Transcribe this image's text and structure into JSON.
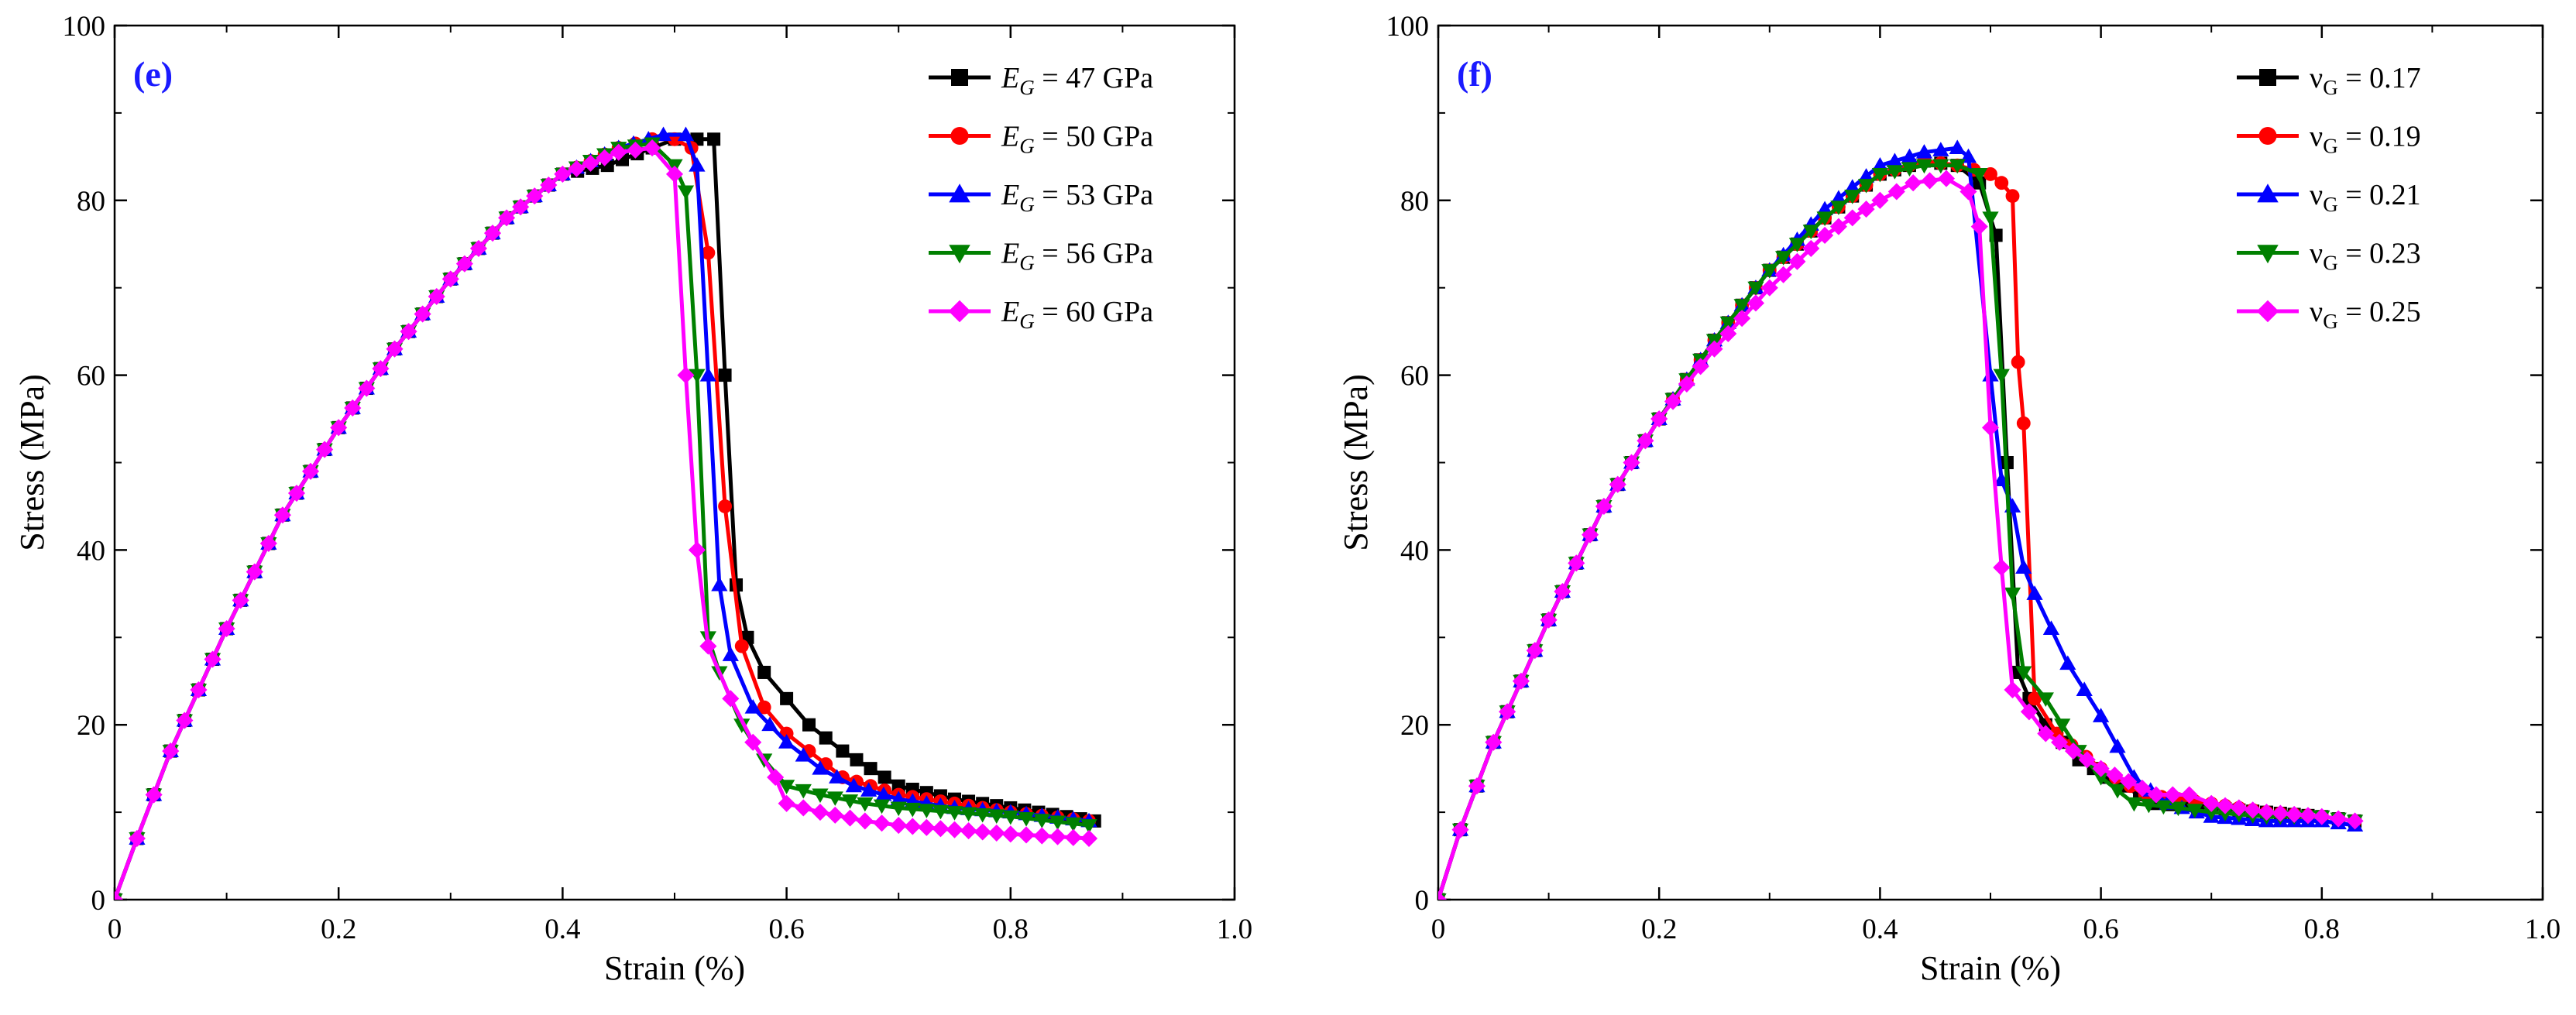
{
  "chart_data": [
    {
      "type": "line",
      "panel_label": "(e)",
      "xlabel": "Strain (%)",
      "ylabel": "Stress (MPa)",
      "xlim": [
        0,
        1.0
      ],
      "ylim": [
        0,
        100
      ],
      "xticks": [
        0,
        0.2,
        0.4,
        0.6,
        0.8,
        1.0
      ],
      "xtick_labels": [
        "0",
        "0.2",
        "0.4",
        "0.6",
        "0.8",
        "1.0"
      ],
      "yticks": [
        0,
        20,
        40,
        60,
        80,
        100
      ],
      "ytick_labels": [
        "0",
        "20",
        "40",
        "60",
        "80",
        "100"
      ],
      "legend_position": "top-right",
      "series": [
        {
          "name": "E_G = 47 GPa",
          "symbol": "E",
          "sub": "G",
          "rest": " = 47 GPa",
          "color": "#000000",
          "marker": "square",
          "x": [
            0,
            0.02,
            0.05,
            0.1,
            0.15,
            0.2,
            0.25,
            0.3,
            0.35,
            0.4,
            0.44,
            0.48,
            0.5,
            0.52,
            0.535,
            0.545,
            0.555,
            0.565,
            0.58,
            0.6,
            0.62,
            0.65,
            0.7,
            0.75,
            0.8,
            0.85,
            0.875
          ],
          "y": [
            0,
            7,
            17,
            31,
            44,
            54,
            63,
            71,
            78,
            83,
            84,
            86,
            87,
            87,
            87,
            60,
            36,
            30,
            26,
            23,
            20,
            17,
            13,
            11.5,
            10.5,
            9.5,
            9
          ]
        },
        {
          "name": "E_G = 50 GPa",
          "symbol": "E",
          "sub": "G",
          "rest": " = 50 GPa",
          "color": "#ff0000",
          "marker": "circle",
          "x": [
            0,
            0.02,
            0.05,
            0.1,
            0.15,
            0.2,
            0.25,
            0.3,
            0.35,
            0.4,
            0.45,
            0.48,
            0.5,
            0.515,
            0.53,
            0.545,
            0.56,
            0.58,
            0.6,
            0.62,
            0.65,
            0.7,
            0.75,
            0.8,
            0.87
          ],
          "y": [
            0,
            7,
            17,
            31,
            44,
            54,
            63,
            71,
            78,
            83,
            86,
            87,
            87,
            86,
            74,
            45,
            29,
            22,
            19,
            17,
            14,
            12,
            11,
            10,
            9
          ]
        },
        {
          "name": "E_G = 53 GPa",
          "symbol": "E",
          "sub": "G",
          "rest": " = 53 GPa",
          "color": "#0000ff",
          "marker": "triangle-up",
          "x": [
            0,
            0.02,
            0.05,
            0.1,
            0.15,
            0.2,
            0.25,
            0.3,
            0.35,
            0.4,
            0.45,
            0.49,
            0.51,
            0.52,
            0.53,
            0.54,
            0.55,
            0.57,
            0.6,
            0.63,
            0.66,
            0.7,
            0.75,
            0.8,
            0.87
          ],
          "y": [
            0,
            7,
            17,
            31,
            44,
            54,
            63,
            71,
            78,
            83,
            86,
            87.5,
            87.5,
            84,
            60,
            36,
            28,
            22,
            18,
            15,
            13,
            11.5,
            10.5,
            10,
            9
          ]
        },
        {
          "name": "E_G = 56 GPa",
          "symbol": "E",
          "sub": "G",
          "rest": " = 56 GPa",
          "color": "#008000",
          "marker": "triangle-down",
          "x": [
            0,
            0.02,
            0.05,
            0.1,
            0.15,
            0.2,
            0.25,
            0.3,
            0.35,
            0.4,
            0.45,
            0.48,
            0.5,
            0.51,
            0.52,
            0.53,
            0.54,
            0.56,
            0.58,
            0.6,
            0.63,
            0.67,
            0.7,
            0.75,
            0.8,
            0.87
          ],
          "y": [
            0,
            7,
            17,
            31,
            44,
            54,
            63,
            71,
            78,
            83,
            86,
            86.5,
            84,
            81,
            60,
            30,
            26,
            20,
            16,
            13,
            12,
            11,
            10.5,
            10,
            9.5,
            8.5
          ]
        },
        {
          "name": "E_G = 60 GPa",
          "symbol": "E",
          "sub": "G",
          "rest": " = 60 GPa",
          "color": "#ff00ff",
          "marker": "diamond",
          "x": [
            0,
            0.02,
            0.05,
            0.1,
            0.15,
            0.2,
            0.25,
            0.3,
            0.35,
            0.4,
            0.45,
            0.48,
            0.5,
            0.51,
            0.52,
            0.53,
            0.55,
            0.57,
            0.59,
            0.6,
            0.63,
            0.67,
            0.7,
            0.75,
            0.8,
            0.87
          ],
          "y": [
            0,
            7,
            17,
            31,
            44,
            54,
            63,
            71,
            78,
            83,
            85.5,
            86,
            83,
            60,
            40,
            29,
            23,
            18,
            14,
            11,
            10,
            9,
            8.5,
            8,
            7.5,
            7
          ]
        }
      ]
    },
    {
      "type": "line",
      "panel_label": "(f)",
      "xlabel": "Strain (%)",
      "ylabel": "Stress (MPa)",
      "xlim": [
        0,
        1.0
      ],
      "ylim": [
        0,
        100
      ],
      "xticks": [
        0,
        0.2,
        0.4,
        0.6,
        0.8,
        1.0
      ],
      "xtick_labels": [
        "0",
        "0.2",
        "0.4",
        "0.6",
        "0.8",
        "1.0"
      ],
      "yticks": [
        0,
        20,
        40,
        60,
        80,
        100
      ],
      "ytick_labels": [
        "0",
        "20",
        "40",
        "60",
        "80",
        "100"
      ],
      "legend_position": "top-right",
      "series": [
        {
          "name": "νG = 0.17",
          "symbol": "ν",
          "sub": "G",
          "rest": " = 0.17",
          "color": "#000000",
          "marker": "square",
          "x": [
            0,
            0.02,
            0.05,
            0.1,
            0.15,
            0.2,
            0.25,
            0.3,
            0.35,
            0.4,
            0.44,
            0.47,
            0.49,
            0.505,
            0.515,
            0.525,
            0.535,
            0.55,
            0.58,
            0.62,
            0.65,
            0.7,
            0.75,
            0.8,
            0.83
          ],
          "y": [
            0,
            8,
            18,
            32,
            45,
            55,
            64,
            72,
            78,
            83,
            84.5,
            84,
            82,
            76,
            50,
            26,
            23,
            20,
            16,
            13,
            11,
            10.5,
            10,
            9.5,
            9
          ]
        },
        {
          "name": "νG = 0.19",
          "symbol": "ν",
          "sub": "G",
          "rest": " = 0.19",
          "color": "#ff0000",
          "marker": "circle",
          "x": [
            0,
            0.02,
            0.05,
            0.1,
            0.15,
            0.2,
            0.25,
            0.3,
            0.35,
            0.4,
            0.44,
            0.47,
            0.5,
            0.51,
            0.52,
            0.525,
            0.53,
            0.54,
            0.56,
            0.6,
            0.64,
            0.7,
            0.75,
            0.8,
            0.83
          ],
          "y": [
            0,
            8,
            18,
            32,
            45,
            55,
            64,
            72,
            78,
            83,
            84.5,
            84,
            83,
            82,
            80.5,
            61.5,
            54.5,
            23,
            19,
            15,
            12,
            11,
            10,
            9.5,
            9
          ]
        },
        {
          "name": "νG = 0.21",
          "symbol": "ν",
          "sub": "G",
          "rest": " = 0.21",
          "color": "#0000ff",
          "marker": "triangle-up",
          "x": [
            0,
            0.02,
            0.05,
            0.1,
            0.15,
            0.2,
            0.25,
            0.3,
            0.35,
            0.4,
            0.44,
            0.47,
            0.48,
            0.5,
            0.51,
            0.52,
            0.53,
            0.54,
            0.57,
            0.6,
            0.63,
            0.66,
            0.7,
            0.75,
            0.8,
            0.83
          ],
          "y": [
            0,
            8,
            18,
            32,
            45,
            55,
            64,
            72,
            79,
            84,
            85.5,
            86,
            85,
            60,
            48,
            45,
            38,
            35,
            27,
            21,
            14,
            11,
            9.5,
            9,
            9,
            8.5
          ]
        },
        {
          "name": "νG = 0.23",
          "symbol": "ν",
          "sub": "G",
          "rest": " = 0.23",
          "color": "#008000",
          "marker": "triangle-down",
          "x": [
            0,
            0.02,
            0.05,
            0.1,
            0.15,
            0.2,
            0.25,
            0.3,
            0.35,
            0.4,
            0.44,
            0.47,
            0.49,
            0.5,
            0.51,
            0.52,
            0.53,
            0.55,
            0.58,
            0.6,
            0.63,
            0.67,
            0.7,
            0.75,
            0.8,
            0.83
          ],
          "y": [
            0,
            8,
            18,
            32,
            45,
            55,
            64,
            72,
            78,
            83,
            84,
            84,
            83,
            78,
            60,
            35,
            26,
            23,
            17,
            14,
            11,
            10.5,
            10,
            9.5,
            9.5,
            9
          ]
        },
        {
          "name": "νG = 0.25",
          "symbol": "ν",
          "sub": "G",
          "rest": " = 0.25",
          "color": "#ff00ff",
          "marker": "diamond",
          "x": [
            0,
            0.02,
            0.05,
            0.1,
            0.15,
            0.2,
            0.25,
            0.3,
            0.35,
            0.4,
            0.43,
            0.46,
            0.48,
            0.49,
            0.5,
            0.51,
            0.52,
            0.55,
            0.6,
            0.65,
            0.68,
            0.7,
            0.75,
            0.8,
            0.83
          ],
          "y": [
            0,
            8,
            18,
            32,
            45,
            55,
            63,
            70,
            76,
            80,
            82,
            82.5,
            81,
            77,
            54,
            38,
            24,
            19,
            15,
            12,
            12,
            11,
            10,
            9.5,
            9
          ]
        }
      ]
    }
  ]
}
